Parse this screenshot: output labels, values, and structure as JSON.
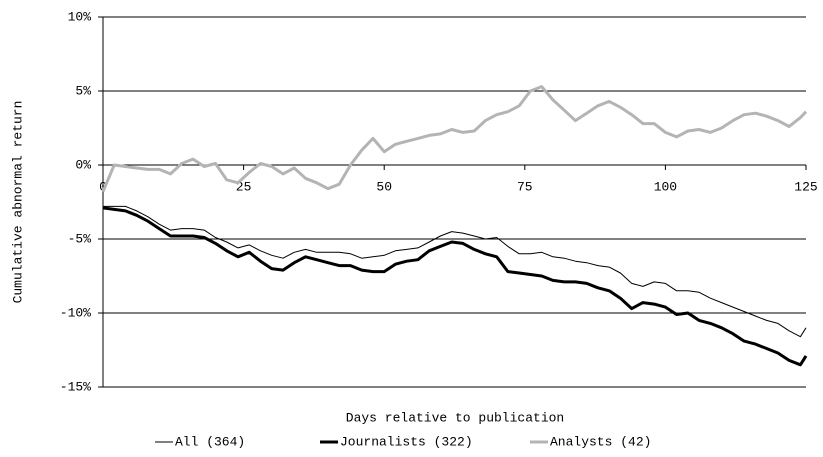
{
  "chart_data": {
    "type": "line",
    "xlabel": "Days relative to publication",
    "ylabel": "Cumulative abnormal return",
    "x": [
      0,
      2,
      4,
      6,
      8,
      10,
      12,
      14,
      16,
      18,
      20,
      22,
      24,
      26,
      28,
      30,
      32,
      34,
      36,
      38,
      40,
      42,
      44,
      46,
      48,
      50,
      52,
      54,
      56,
      58,
      60,
      62,
      64,
      66,
      68,
      70,
      72,
      74,
      76,
      78,
      80,
      82,
      84,
      86,
      88,
      90,
      92,
      94,
      96,
      98,
      100,
      102,
      104,
      106,
      108,
      110,
      112,
      114,
      116,
      118,
      120,
      122,
      124,
      125
    ],
    "series": [
      {
        "name": "All (364)",
        "color": "#000000",
        "width": 1,
        "values": [
          -2.8,
          -2.8,
          -2.8,
          -3.1,
          -3.5,
          -4.0,
          -4.4,
          -4.3,
          -4.3,
          -4.4,
          -4.9,
          -5.2,
          -5.6,
          -5.4,
          -5.8,
          -6.1,
          -6.3,
          -5.9,
          -5.7,
          -5.9,
          -5.9,
          -5.9,
          -6.0,
          -6.3,
          -6.2,
          -6.1,
          -5.8,
          -5.7,
          -5.6,
          -5.2,
          -4.8,
          -4.5,
          -4.6,
          -4.8,
          -5.0,
          -4.9,
          -5.5,
          -6.0,
          -6.0,
          -5.9,
          -6.2,
          -6.3,
          -6.5,
          -6.6,
          -6.8,
          -6.9,
          -7.3,
          -8.0,
          -8.2,
          -7.9,
          -8.0,
          -8.5,
          -8.5,
          -8.6,
          -9.0,
          -9.3,
          -9.6,
          -9.9,
          -10.2,
          -10.5,
          -10.7,
          -11.2,
          -11.6,
          -11.0
        ]
      },
      {
        "name": "Journalists (322)",
        "color": "#000000",
        "width": 3,
        "values": [
          -2.9,
          -3.0,
          -3.1,
          -3.4,
          -3.8,
          -4.3,
          -4.8,
          -4.8,
          -4.8,
          -4.9,
          -5.3,
          -5.8,
          -6.2,
          -5.9,
          -6.5,
          -7.0,
          -7.1,
          -6.6,
          -6.2,
          -6.4,
          -6.6,
          -6.8,
          -6.8,
          -7.1,
          -7.2,
          -7.2,
          -6.7,
          -6.5,
          -6.4,
          -5.8,
          -5.5,
          -5.2,
          -5.3,
          -5.7,
          -6.0,
          -6.2,
          -7.2,
          -7.3,
          -7.4,
          -7.5,
          -7.8,
          -7.9,
          -7.9,
          -8.0,
          -8.3,
          -8.5,
          -9.0,
          -9.7,
          -9.3,
          -9.4,
          -9.6,
          -10.1,
          -10.0,
          -10.5,
          -10.7,
          -11.0,
          -11.4,
          -11.9,
          -12.1,
          -12.4,
          -12.7,
          -13.2,
          -13.5,
          -12.9
        ]
      },
      {
        "name": "Analysts (42)",
        "color": "#b4b4b4",
        "width": 3,
        "values": [
          -1.8,
          0.0,
          -0.1,
          -0.2,
          -0.3,
          -0.3,
          -0.6,
          0.1,
          0.4,
          -0.1,
          0.1,
          -1.0,
          -1.2,
          -0.5,
          0.1,
          -0.1,
          -0.6,
          -0.2,
          -0.9,
          -1.2,
          -1.6,
          -1.3,
          0.0,
          1.0,
          1.8,
          0.9,
          1.4,
          1.6,
          1.8,
          2.0,
          2.1,
          2.4,
          2.2,
          2.3,
          3.0,
          3.4,
          3.6,
          4.0,
          5.0,
          5.3,
          4.4,
          3.7,
          3.0,
          3.5,
          4.0,
          4.3,
          3.9,
          3.4,
          2.8,
          2.8,
          2.2,
          1.9,
          2.3,
          2.4,
          2.2,
          2.5,
          3.0,
          3.4,
          3.5,
          3.3,
          3.0,
          2.6,
          3.2,
          3.6
        ]
      }
    ],
    "xlim": [
      0,
      125
    ],
    "xticks": [
      0,
      25,
      50,
      75,
      100,
      125
    ],
    "ylim": [
      -15,
      10
    ],
    "yticks": [
      {
        "value": -15,
        "label": "-15%"
      },
      {
        "value": -10,
        "label": "-10%"
      },
      {
        "value": -5,
        "label": "-5%"
      },
      {
        "value": 0,
        "label": "0%"
      },
      {
        "value": 5,
        "label": "5%"
      },
      {
        "value": 10,
        "label": "10%"
      }
    ],
    "grid": true,
    "legend": "bottom"
  }
}
